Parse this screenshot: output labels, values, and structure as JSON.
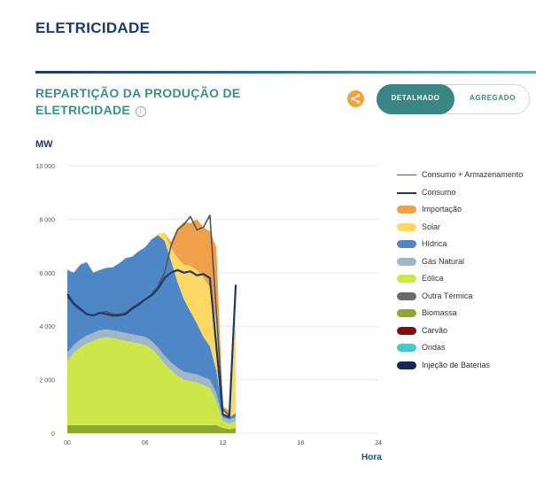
{
  "page_title": "ELETRICIDADE",
  "section": {
    "title": "REPARTIÇÃO DA PRODUÇÃO DE ELETRICIDADE",
    "info_icon": "info-icon",
    "share_icon": "share-icon"
  },
  "toggle": {
    "active": "DETALHADO",
    "inactive": "AGREGADO"
  },
  "colors": {
    "brand_dark": "#1c3a6b",
    "accent_teal": "#3a8585",
    "share_orange": "#f3a33b"
  },
  "chart_data": {
    "type": "area",
    "ylabel": "MW",
    "xlabel": "Hora",
    "ylim": [
      0,
      10000
    ],
    "xlim": [
      0,
      24
    ],
    "yticks": [
      "0",
      "2 000",
      "4 000",
      "6 000",
      "8 000",
      "10 000"
    ],
    "y_tick_values": [
      0,
      2000,
      4000,
      6000,
      8000,
      10000
    ],
    "xticks": [
      "00",
      "06",
      "12",
      "18",
      "24"
    ],
    "x_tick_values": [
      0,
      6,
      12,
      18,
      24
    ],
    "grid": true,
    "legend_position": "right",
    "x": [
      0,
      0.5,
      1,
      1.5,
      2,
      2.5,
      3,
      3.5,
      4,
      4.5,
      5,
      5.5,
      6,
      6.5,
      7,
      7.5,
      8,
      8.5,
      9,
      9.5,
      10,
      10.5,
      11,
      11.5,
      12,
      12.5,
      13
    ],
    "stacked_series": [
      {
        "name": "Biomassa",
        "color": "#8ea72f",
        "values": [
          300,
          300,
          300,
          300,
          300,
          300,
          300,
          300,
          300,
          300,
          300,
          300,
          300,
          300,
          300,
          300,
          300,
          300,
          300,
          300,
          300,
          300,
          300,
          300,
          200,
          150,
          200
        ]
      },
      {
        "name": "Eólica",
        "color": "#cde74a",
        "values": [
          2400,
          2700,
          2900,
          3050,
          3150,
          3250,
          3280,
          3250,
          3200,
          3150,
          3100,
          3050,
          3000,
          2850,
          2600,
          2300,
          2050,
          1850,
          1700,
          1650,
          1600,
          1500,
          1400,
          900,
          250,
          200,
          250
        ]
      },
      {
        "name": "Gás Natural",
        "color": "#9fb7c8",
        "values": [
          300,
          300,
          300,
          300,
          300,
          300,
          300,
          300,
          300,
          300,
          300,
          300,
          300,
          300,
          300,
          300,
          300,
          300,
          300,
          300,
          300,
          300,
          300,
          300,
          150,
          150,
          150
        ]
      },
      {
        "name": "Hídrica",
        "color": "#4f86c6",
        "values": [
          3100,
          2700,
          2800,
          2750,
          2250,
          2250,
          2300,
          2350,
          2550,
          2800,
          2900,
          3150,
          3350,
          3800,
          4200,
          4300,
          3800,
          3200,
          2700,
          2300,
          1900,
          1500,
          1250,
          850,
          150,
          100,
          150
        ]
      },
      {
        "name": "Solar",
        "color": "#ffd864",
        "values": [
          0,
          0,
          0,
          0,
          0,
          0,
          0,
          0,
          0,
          0,
          0,
          0,
          0,
          0,
          50,
          300,
          500,
          900,
          1300,
          1700,
          2000,
          2200,
          2200,
          1800,
          150,
          100,
          3600
        ]
      },
      {
        "name": "Importação",
        "color": "#f0a04b",
        "values": [
          0,
          0,
          0,
          0,
          0,
          0,
          0,
          0,
          0,
          0,
          0,
          0,
          0,
          0,
          0,
          0,
          200,
          1100,
          1600,
          1600,
          1900,
          1900,
          2100,
          2800,
          100,
          150,
          0
        ]
      }
    ],
    "line_series": [
      {
        "name": "Consumo + Armazenamento",
        "color": "#555555",
        "values": [
          5100,
          4800,
          4600,
          4450,
          4400,
          4500,
          4550,
          4450,
          4450,
          4500,
          4700,
          4850,
          5000,
          5200,
          5500,
          6000,
          7000,
          7600,
          7800,
          8100,
          7600,
          7700,
          8150,
          null,
          900,
          650,
          5550
        ]
      },
      {
        "name": "Consumo",
        "color": "#1c3a6b",
        "values": [
          5200,
          4850,
          4650,
          4450,
          4400,
          4500,
          4450,
          4400,
          4400,
          4450,
          4650,
          4800,
          5000,
          5150,
          5400,
          5800,
          6000,
          6100,
          6000,
          6050,
          5900,
          5950,
          5800,
          null,
          700,
          600,
          5550
        ]
      }
    ],
    "legend": [
      {
        "name": "Consumo + Armazenamento",
        "kind": "line",
        "color": "#555555"
      },
      {
        "name": "Consumo",
        "kind": "line",
        "color": "#1c3a6b"
      },
      {
        "name": "Importação",
        "kind": "swatch",
        "color": "#f0a04b"
      },
      {
        "name": "Solar",
        "kind": "swatch",
        "color": "#ffd864"
      },
      {
        "name": "Hídrica",
        "kind": "swatch",
        "color": "#4f86c6"
      },
      {
        "name": "Gás Natural",
        "kind": "swatch",
        "color": "#9fb7c8"
      },
      {
        "name": "Eólica",
        "kind": "swatch",
        "color": "#cde74a"
      },
      {
        "name": "Outra Térmica",
        "kind": "swatch",
        "color": "#6b6b6b"
      },
      {
        "name": "Biomassa",
        "kind": "swatch",
        "color": "#8ea72f"
      },
      {
        "name": "Carvão",
        "kind": "swatch",
        "color": "#7a1010"
      },
      {
        "name": "Ondas",
        "kind": "swatch",
        "color": "#44c8c8"
      },
      {
        "name": "Injeção de Baterias",
        "kind": "swatch",
        "color": "#142850"
      }
    ]
  }
}
